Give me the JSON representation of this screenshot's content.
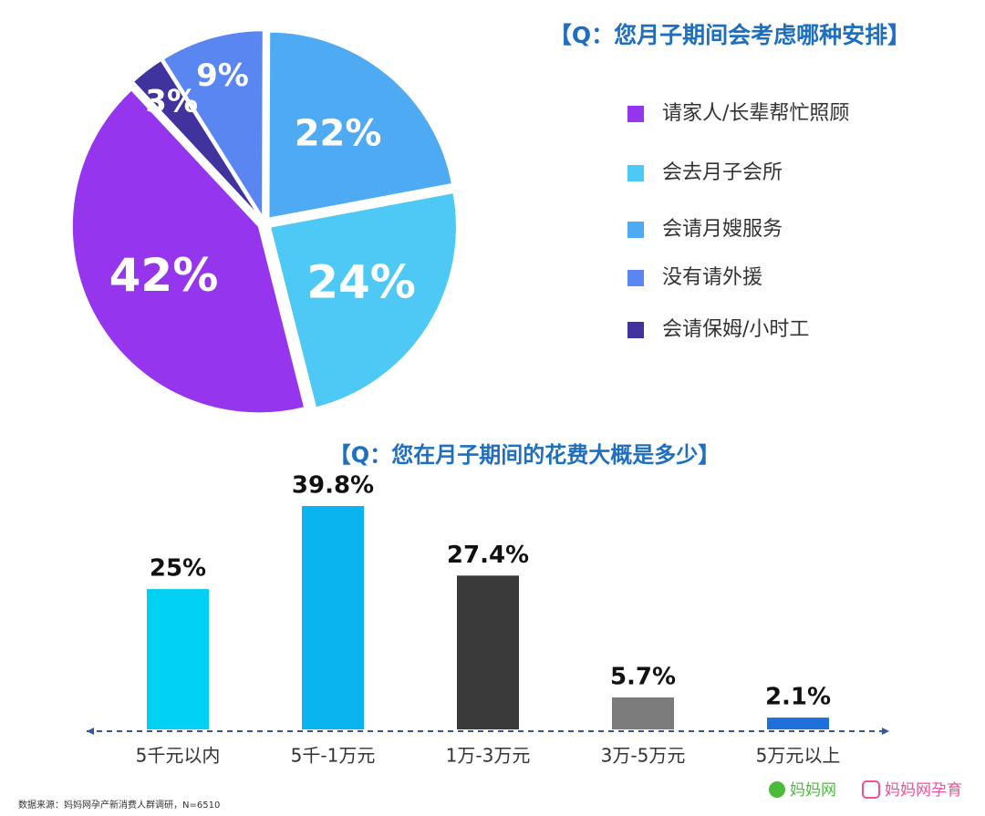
{
  "chart_data": [
    {
      "type": "pie",
      "title": "【Q：您月子期间会考虑哪种安排】",
      "categories": [
        "请家人/长辈帮忙照顾",
        "会去月子会所",
        "会请月嫂服务",
        "没有请外援",
        "会请保姆/小时工"
      ],
      "values": [
        42,
        24,
        22,
        9,
        3
      ],
      "value_labels": [
        "42%",
        "24%",
        "22%",
        "9%",
        "3%"
      ],
      "colors": [
        "#9535ee",
        "#4ec9f5",
        "#4faaf4",
        "#5a86f2",
        "#40339e"
      ]
    },
    {
      "type": "bar",
      "title": "【Q：您在月子期间的花费大概是多少】",
      "categories": [
        "5千元以内",
        "5千-1万元",
        "1万-3万元",
        "3万-5万元",
        "5万元以上"
      ],
      "values": [
        25,
        39.8,
        27.4,
        5.7,
        2.1
      ],
      "value_labels": [
        "25%",
        "39.8%",
        "27.4%",
        "5.7%",
        "2.1%"
      ],
      "colors": [
        "#00d0f2",
        "#0ab4ee",
        "#3a3a3a",
        "#7b7b7b",
        "#1f70d8"
      ]
    }
  ],
  "footer": {
    "source": "数据来源：妈妈网孕产新消费人群调研，N=6510",
    "logo1": "妈妈网",
    "logo2": "妈妈网孕育"
  }
}
